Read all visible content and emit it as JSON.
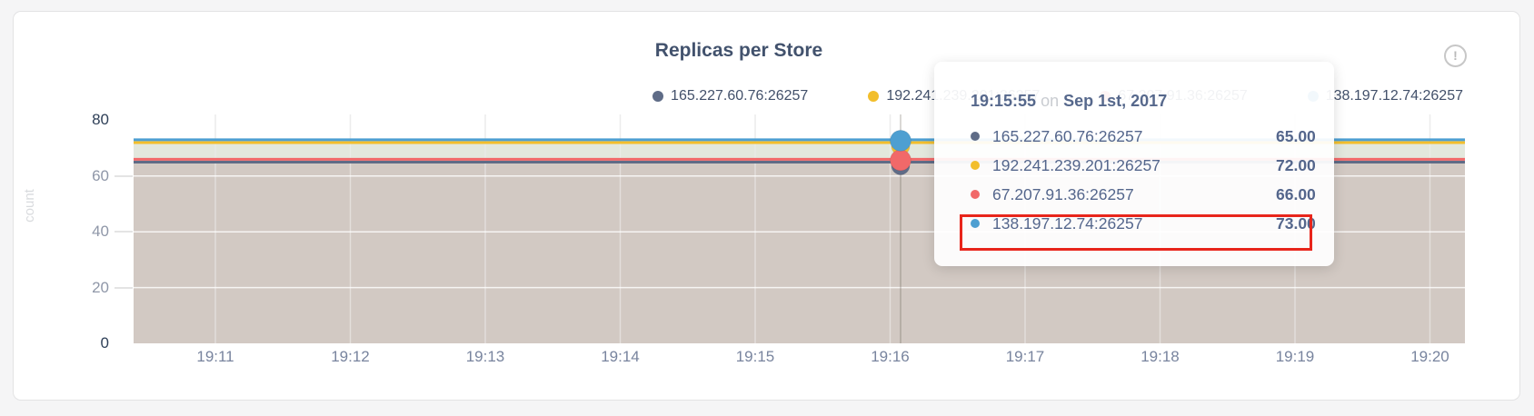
{
  "card": {
    "title": "Replicas per Store",
    "info_icon": "!"
  },
  "chart_data": {
    "type": "area",
    "title": "Replicas per Store",
    "xlabel": "",
    "ylabel": "count",
    "ylim": [
      0,
      80
    ],
    "grid": true,
    "legend_position": "top-right",
    "y_ticks": [
      "0",
      "20",
      "40",
      "60",
      "80"
    ],
    "x_ticks": [
      "19:11",
      "19:12",
      "19:13",
      "19:14",
      "19:15",
      "19:16",
      "19:17",
      "19:18",
      "19:19",
      "19:20"
    ],
    "series": [
      {
        "name": "165.227.60.76:26257",
        "color": "#5F6C87",
        "value": 65,
        "display_value": "65.00"
      },
      {
        "name": "192.241.239.201:26257",
        "color": "#F2BE2C",
        "value": 72,
        "display_value": "72.00"
      },
      {
        "name": "67.207.91.36:26257",
        "color": "#F16969",
        "value": 66,
        "display_value": "66.00"
      },
      {
        "name": "138.197.12.74:26257",
        "color": "#4E9FD1",
        "value": 73,
        "display_value": "73.00"
      }
    ]
  },
  "tooltip": {
    "time": "19:15:55",
    "separator": "on",
    "date": "Sep 1st, 2017",
    "rows": [
      {
        "name": "165.227.60.76:26257",
        "value": "65.00"
      },
      {
        "name": "192.241.239.201:26257",
        "value": "72.00"
      },
      {
        "name": "67.207.91.36:26257",
        "value": "66.00"
      },
      {
        "name": "138.197.12.74:26257",
        "value": "73.00"
      }
    ],
    "highlighted_row": "138.197.12.74:26257"
  },
  "annotation": {
    "highlight_color": "#e8251b"
  }
}
